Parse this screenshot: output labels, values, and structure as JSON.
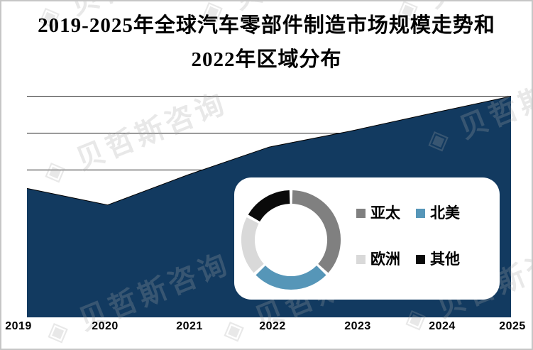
{
  "title": {
    "line1": "2019-2025年全球汽车零部件制造市场规模走势和",
    "line2": "2022年区域分布"
  },
  "watermark": {
    "logo": "◈",
    "text": "贝哲斯咨询"
  },
  "colors": {
    "area_fill": "#123A60",
    "area_edge": "#000000",
    "gridline": "#222222",
    "frame_border": "#C6C6C6",
    "panel_bg": "#FFFFFF",
    "text": "#000000"
  },
  "chart_data": [
    {
      "type": "area",
      "title": "2019-2025年全球汽车零部件制造市场规模走势",
      "categories": [
        "2019",
        "2020",
        "2021",
        "2022",
        "2023",
        "2024",
        "2025"
      ],
      "series": [
        {
          "name": "全球汽车零部件制造市场规模",
          "values": [
            3.5,
            3.05,
            3.87,
            4.62,
            5.05,
            5.53,
            6.0
          ]
        }
      ],
      "value_scale": "relative gridline units (y-axis has no visible tick labels in source; 1 unit = 1 gridline interval)",
      "ylim": [
        0,
        6
      ],
      "grid": "horizontal gridlines only",
      "legend_position": "none",
      "fill_color": "#123A60"
    },
    {
      "type": "pie",
      "subtype": "donut",
      "title": "2022年区域分布",
      "unit": "percent (estimated from arc angles; no data labels shown in source)",
      "slices": [
        {
          "label": "亚太",
          "value": 37,
          "color": "#808080"
        },
        {
          "label": "北美",
          "value": 26,
          "color": "#5696B8"
        },
        {
          "label": "欧洲",
          "value": 20,
          "color": "#D9D9D9"
        },
        {
          "label": "其他",
          "value": 17,
          "color": "#0A0A0A"
        }
      ],
      "legend_position": "right of donut, 2x2 grid",
      "start_angle_deg": 0,
      "direction": "clockwise"
    }
  ]
}
